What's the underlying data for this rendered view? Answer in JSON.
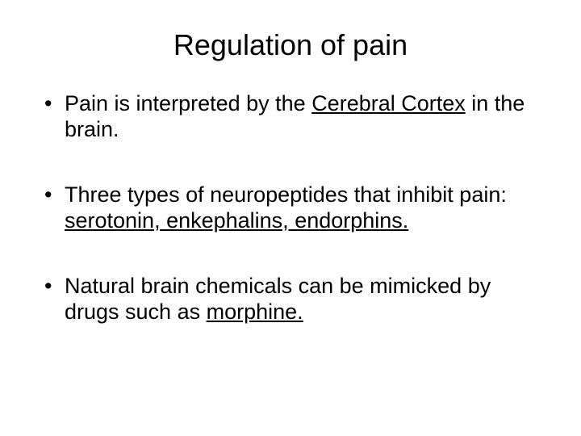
{
  "title": "Regulation of pain",
  "bullets": [
    {
      "pre": "Pain is interpreted by the ",
      "underlined": "Cerebral Cortex",
      "post": " in the brain."
    },
    {
      "pre": "Three types of neuropeptides that inhibit pain: ",
      "underlined": "serotonin, enkephalins, endorphins.",
      "post": ""
    },
    {
      "pre": "Natural brain chemicals can be mimicked by drugs such as ",
      "underlined": "morphine.",
      "post": ""
    }
  ],
  "colors": {
    "background": "#ffffff",
    "text": "#000000"
  },
  "typography": {
    "title_fontsize": 36,
    "body_fontsize": 27,
    "font_family": "Arial"
  }
}
